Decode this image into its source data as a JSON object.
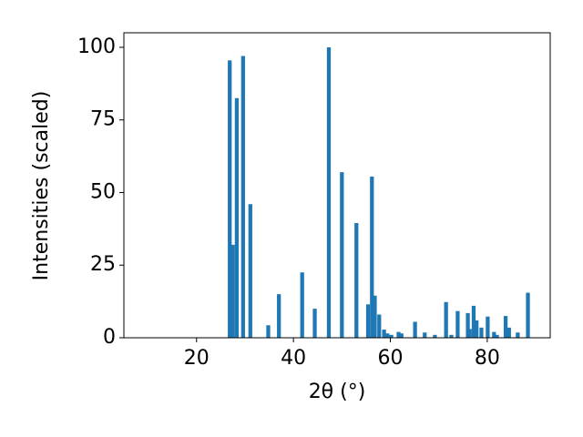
{
  "chart_data": {
    "type": "bar",
    "xlabel": "2θ (°)",
    "ylabel": "Intensities (scaled)",
    "x": [
      26.85,
      27.5,
      28.3,
      29.6,
      31.1,
      34.8,
      37.0,
      41.8,
      44.4,
      47.3,
      50.0,
      53.0,
      55.4,
      56.2,
      56.8,
      57.7,
      58.7,
      59.4,
      60.2,
      61.7,
      62.3,
      65.1,
      67.1,
      69.2,
      71.5,
      72.6,
      73.9,
      76.0,
      76.4,
      77.2,
      77.8,
      78.8,
      80.1,
      81.4,
      82.0,
      83.8,
      84.5,
      86.3,
      88.4
    ],
    "values": [
      95.5,
      32,
      82.5,
      97,
      46,
      4.3,
      15,
      22.5,
      10,
      100,
      57,
      39.5,
      11.5,
      55.5,
      14.5,
      8,
      2.8,
      1.5,
      1,
      2,
      1.5,
      5.5,
      1.8,
      1,
      12.3,
      1,
      9.2,
      8.5,
      3,
      11,
      6,
      3.5,
      7.3,
      2,
      1,
      7.5,
      3.5,
      1.8,
      15.5
    ],
    "color": "#1f77b4",
    "xlim": [
      5,
      93
    ],
    "xticks": [
      20,
      40,
      60,
      80
    ],
    "ylim": [
      0,
      105
    ],
    "yticks": [
      0,
      25,
      50,
      75,
      100
    ]
  }
}
